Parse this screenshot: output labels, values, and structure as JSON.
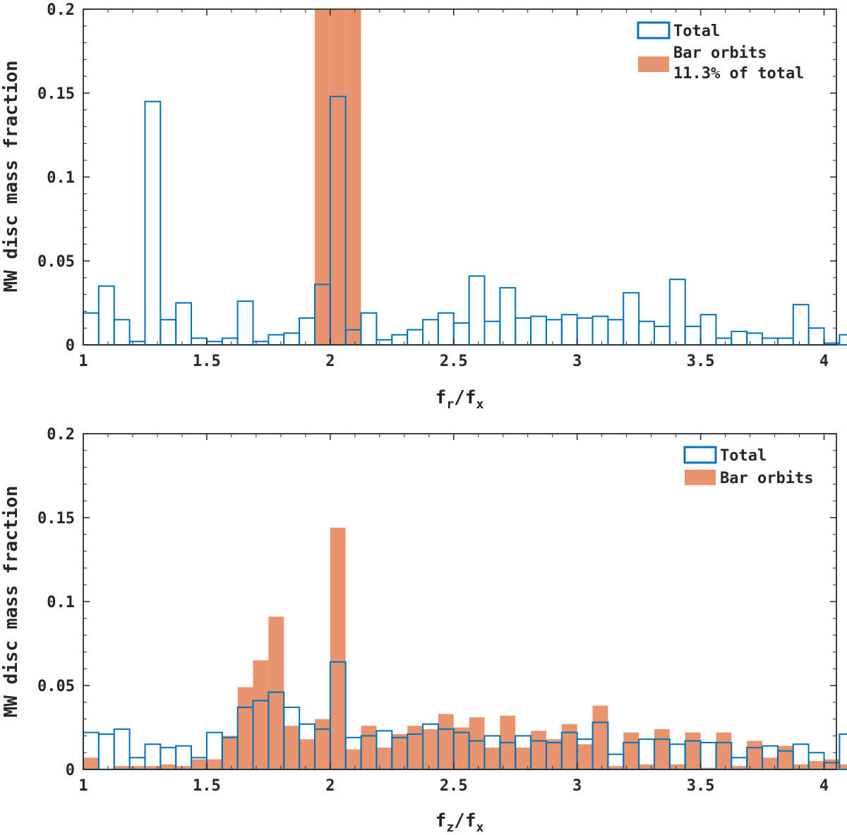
{
  "colors": {
    "total": "#0072BD",
    "bar": "#E8956F",
    "axis": "#262626"
  },
  "chart_data": [
    {
      "type": "histogram",
      "name": "top",
      "xlabel_main": "f",
      "xlabel_sub1": "r",
      "xlabel_mid": "/f",
      "xlabel_sub2": "x",
      "ylabel": "MW disc mass fraction",
      "xlim": [
        1,
        4.05
      ],
      "ylim": [
        0,
        0.2
      ],
      "xticks": [
        1,
        1.5,
        2,
        2.5,
        3,
        3.5,
        4
      ],
      "xtick_labels": [
        "1",
        "1.5",
        "2",
        "2.5",
        "3",
        "3.5",
        "4"
      ],
      "yticks": [
        0,
        0.05,
        0.1,
        0.15,
        0.2
      ],
      "ytick_labels": [
        "0",
        "0.05",
        "0.1",
        "0.15",
        "0.2"
      ],
      "bin_start": 1.0,
      "bin_width": 0.0625,
      "series": [
        {
          "name": "Total",
          "values": [
            0.019,
            0.035,
            0.015,
            0.002,
            0.145,
            0.015,
            0.025,
            0.004,
            0.002,
            0.004,
            0.026,
            0.002,
            0.006,
            0.007,
            0.016,
            0.036,
            0.148,
            0.009,
            0.019,
            0.003,
            0.006,
            0.009,
            0.015,
            0.019,
            0.013,
            0.041,
            0.014,
            0.034,
            0.016,
            0.017,
            0.015,
            0.018,
            0.016,
            0.017,
            0.015,
            0.031,
            0.014,
            0.011,
            0.039,
            0.011,
            0.018,
            0.004,
            0.008,
            0.007,
            0.004,
            0.004,
            0.024,
            0.01,
            0.001,
            0.006
          ]
        },
        {
          "name": "Bar orbits",
          "note": "11.3% of total",
          "values": [
            0,
            0,
            0,
            0,
            0,
            0,
            0,
            0,
            0,
            0,
            0,
            0,
            0,
            0,
            0,
            0.2,
            0.2,
            0.2,
            0,
            0,
            0,
            0,
            0,
            0,
            0,
            0,
            0,
            0,
            0,
            0,
            0,
            0,
            0,
            0,
            0,
            0,
            0,
            0,
            0,
            0,
            0,
            0,
            0,
            0,
            0,
            0,
            0,
            0,
            0,
            0
          ]
        }
      ],
      "legend": [
        "Total",
        "Bar orbits",
        "11.3% of total"
      ],
      "legend_position": "top-right"
    },
    {
      "type": "histogram",
      "name": "bottom",
      "xlabel_main": "f",
      "xlabel_sub1": "z",
      "xlabel_mid": "/f",
      "xlabel_sub2": "x",
      "ylabel": "MW disc mass fraction",
      "xlim": [
        1,
        4.05
      ],
      "ylim": [
        0,
        0.2
      ],
      "xticks": [
        1,
        1.5,
        2,
        2.5,
        3,
        3.5,
        4
      ],
      "xtick_labels": [
        "1",
        "1.5",
        "2",
        "2.5",
        "3",
        "3.5",
        "4"
      ],
      "yticks": [
        0,
        0.05,
        0.1,
        0.15,
        0.2
      ],
      "ytick_labels": [
        "0",
        "0.05",
        "0.1",
        "0.15",
        "0.2"
      ],
      "bin_start": 1.0,
      "bin_width": 0.0625,
      "series": [
        {
          "name": "Total",
          "values": [
            0.022,
            0.021,
            0.024,
            0.007,
            0.015,
            0.013,
            0.014,
            0.007,
            0.022,
            0.019,
            0.037,
            0.041,
            0.046,
            0.037,
            0.027,
            0.024,
            0.064,
            0.019,
            0.02,
            0.023,
            0.019,
            0.021,
            0.027,
            0.024,
            0.022,
            0.017,
            0.02,
            0.016,
            0.02,
            0.017,
            0.016,
            0.022,
            0.018,
            0.028,
            0.009,
            0.016,
            0.018,
            0.018,
            0.015,
            0.017,
            0.016,
            0.016,
            0.007,
            0.013,
            0.014,
            0.011,
            0.015,
            0.01,
            0.004,
            0.021
          ]
        },
        {
          "name": "Bar orbits",
          "values": [
            0.007,
            0.0,
            0.002,
            0.002,
            0.002,
            0.003,
            0.002,
            0.006,
            0.006,
            0.02,
            0.049,
            0.065,
            0.091,
            0.026,
            0.018,
            0.03,
            0.144,
            0.012,
            0.026,
            0.013,
            0.021,
            0.026,
            0.024,
            0.033,
            0.025,
            0.031,
            0.013,
            0.032,
            0.013,
            0.023,
            0.018,
            0.027,
            0.015,
            0.038,
            0.002,
            0.022,
            0.003,
            0.024,
            0.003,
            0.022,
            0.001,
            0.022,
            0.002,
            0.017,
            0.007,
            0.014,
            0.003,
            0.005,
            0.006,
            0.003
          ]
        }
      ],
      "legend": [
        "Total",
        "Bar orbits"
      ],
      "legend_position": "top-right"
    }
  ]
}
